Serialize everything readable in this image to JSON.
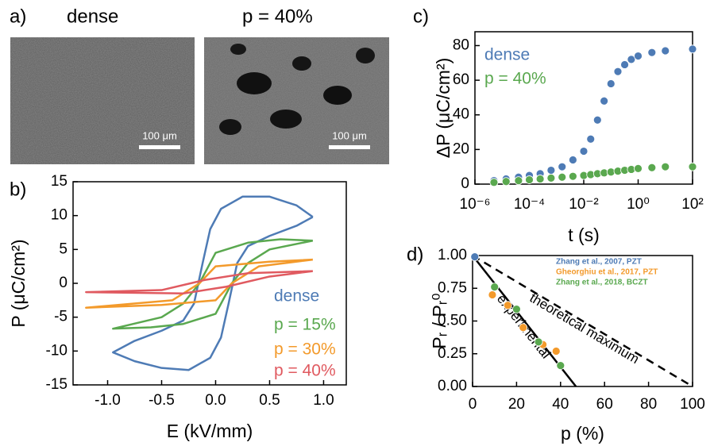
{
  "images": {
    "panel_label": "a)",
    "items": [
      {
        "label": "dense",
        "scale_bar": "100 μm"
      },
      {
        "label": "p = 40%",
        "scale_bar": "100 μm"
      }
    ]
  },
  "chart_data": [
    {
      "type": "loop",
      "panel_label": "b)",
      "x_label": "E (kV/mm)",
      "y_label": "P (μC/cm²)",
      "xlim": [
        -1.32,
        1.21
      ],
      "xticks": [
        {
          "value": -1,
          "label": "-1.0"
        },
        {
          "value": -0.5,
          "label": "-0.5"
        },
        {
          "value": 0,
          "label": "0.0"
        },
        0.5,
        {
          "value": 1,
          "label": "1.0"
        }
      ],
      "ylim": [
        -15,
        15
      ],
      "yticks": [
        -15,
        -10,
        -5,
        0,
        5,
        10,
        15
      ],
      "series": [
        {
          "name": "dense",
          "color": "#4e7bb5",
          "x": [
            0.9,
            0.75,
            0.5,
            0.25,
            0.05,
            -0.05,
            -0.12,
            -0.2,
            -0.3,
            -0.5,
            -0.75,
            -0.95,
            -0.75,
            -0.5,
            -0.25,
            -0.05,
            0.05,
            0.12,
            0.2,
            0.3,
            0.5,
            0.75,
            0.9
          ],
          "values": [
            9.8,
            11.5,
            12.8,
            12.8,
            11,
            8,
            3,
            -3,
            -5.5,
            -7,
            -8.5,
            -10.2,
            -11.5,
            -12.5,
            -12.8,
            -11,
            -8,
            -3,
            3,
            5.5,
            7,
            8.5,
            9.8
          ]
        },
        {
          "name": "p = 15%",
          "color": "#5aa84f",
          "x": [
            0.9,
            0.6,
            0.3,
            0,
            -0.15,
            -0.3,
            -0.5,
            -0.95,
            -0.6,
            -0.3,
            0,
            0.15,
            0.3,
            0.5,
            0.9
          ],
          "values": [
            6.3,
            6.5,
            6,
            4.5,
            0,
            -3,
            -5,
            -6.7,
            -6.5,
            -6,
            -4.5,
            0,
            3,
            5,
            6.3
          ]
        },
        {
          "name": "p = 30%",
          "color": "#f39a2b",
          "x": [
            0.9,
            0.5,
            0,
            -0.15,
            -0.4,
            -1.2,
            -0.5,
            0,
            0.15,
            0.4,
            0.9
          ],
          "values": [
            3.5,
            3.2,
            2.5,
            0,
            -2.5,
            -3.6,
            -3.2,
            -2.5,
            0,
            2.5,
            3.5
          ]
        },
        {
          "name": "p = 40%",
          "color": "#e05a60",
          "x": [
            0.9,
            0.3,
            -0.1,
            -0.5,
            -1.2,
            -0.3,
            0.1,
            0.5,
            0.9
          ],
          "values": [
            1.8,
            1.5,
            0.5,
            -1,
            -1.3,
            -1.5,
            -0.5,
            1,
            1.8
          ]
        }
      ]
    },
    {
      "type": "scatter",
      "panel_label": "c)",
      "x_label": "t (s)",
      "y_label": "ΔP (μC/cm²)",
      "log_x": true,
      "xlim": [
        1e-06,
        100
      ],
      "xticks": [
        {
          "value": 1e-06,
          "label": "10⁻⁶"
        },
        {
          "value": 0.0001,
          "label": "10⁻⁴"
        },
        {
          "value": 0.01,
          "label": "10⁻²"
        },
        {
          "value": 1,
          "label": "10⁰"
        },
        {
          "value": 100,
          "label": "10²"
        }
      ],
      "ylim": [
        0,
        88
      ],
      "yticks": [
        0,
        20,
        40,
        60,
        80
      ],
      "x": [
        5e-06,
        1.4e-05,
        4e-05,
        0.0001,
        0.00025,
        0.00063,
        0.0016,
        0.004,
        0.01,
        0.018,
        0.032,
        0.056,
        0.1,
        0.18,
        0.32,
        0.56,
        1,
        3.2,
        10,
        100
      ],
      "series": [
        {
          "name": "dense",
          "color": "#4e7bb5",
          "values": [
            2,
            3,
            4,
            5,
            6,
            8,
            10,
            14,
            19,
            26,
            37,
            48,
            58,
            65,
            69,
            72,
            74,
            76,
            77,
            78
          ]
        },
        {
          "name": "p = 40%",
          "color": "#5aa84f",
          "values": [
            1,
            1.5,
            2,
            2.5,
            3,
            3.5,
            4,
            4.5,
            5,
            5.5,
            6,
            6.5,
            7,
            7.5,
            8,
            8.5,
            9,
            9.5,
            10,
            10
          ]
        }
      ]
    },
    {
      "type": "scatter",
      "panel_label": "d)",
      "x_label": "p (%)",
      "y_label": "Pᵣ / Pᵣ⁰",
      "xlim": [
        0,
        100
      ],
      "xticks": [
        0,
        20,
        40,
        60,
        80,
        100
      ],
      "ylim": [
        0,
        1
      ],
      "yticks": [
        {
          "value": 0,
          "label": "0.00"
        },
        {
          "value": 0.25,
          "label": "0.25"
        },
        {
          "value": 0.5,
          "label": "0.50"
        },
        {
          "value": 0.75,
          "label": "0.75"
        },
        {
          "value": 1,
          "label": "1.00"
        }
      ],
      "series": [
        {
          "name": "Zhang et al., 2007, PZT",
          "color": "#4e7bb5",
          "x": [
            1
          ],
          "values": [
            0.99
          ]
        },
        {
          "name": "Gheorghiu et al., 2017, PZT",
          "color": "#f39a2b",
          "x": [
            9,
            16,
            23,
            32,
            38
          ],
          "values": [
            0.7,
            0.62,
            0.45,
            0.32,
            0.27
          ]
        },
        {
          "name": "Zhang et al., 2018, BCZT",
          "color": "#5aa84f",
          "x": [
            10,
            20,
            30,
            40
          ],
          "values": [
            0.76,
            0.59,
            0.34,
            0.16
          ]
        }
      ],
      "lines": [
        {
          "name": "experimental",
          "style": "solid",
          "x": [
            0,
            47
          ],
          "values": [
            1,
            0
          ]
        },
        {
          "name": "theoretical maximum",
          "style": "dashed",
          "x": [
            0,
            100
          ],
          "values": [
            1,
            0
          ]
        }
      ]
    }
  ]
}
